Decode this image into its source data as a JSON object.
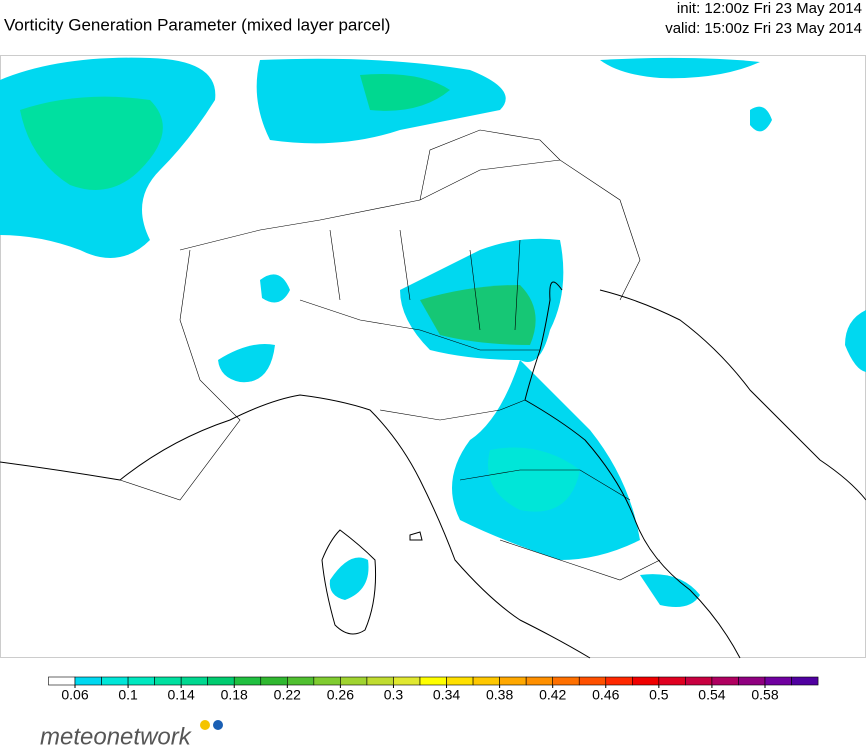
{
  "header": {
    "title": "Vorticity Generation Parameter (mixed layer parcel)",
    "init": "init: 12:00z Fri 23 May 2014",
    "valid": "valid: 15:00z Fri 23 May 2014"
  },
  "colorbar": {
    "ticks": [
      0.06,
      0.1,
      0.14,
      0.18,
      0.22,
      0.26,
      0.3,
      0.34,
      0.38,
      0.42,
      0.46,
      0.5,
      0.54,
      0.58
    ],
    "colors": [
      "#ffffff",
      "#00d8f0",
      "#00e6d8",
      "#00e8c0",
      "#00e0a0",
      "#00d890",
      "#00cc70",
      "#20c040",
      "#30b830",
      "#50c030",
      "#80cc30",
      "#a0d430",
      "#c0dc30",
      "#e0e830",
      "#ffff00",
      "#ffe000",
      "#ffc800",
      "#ffa800",
      "#ff9000",
      "#ff7000",
      "#ff5000",
      "#ff2800",
      "#f00000",
      "#e00020",
      "#c80040",
      "#b00060",
      "#900080",
      "#7000a0",
      "#5000a0"
    ]
  },
  "logo": "meteonetwork"
}
